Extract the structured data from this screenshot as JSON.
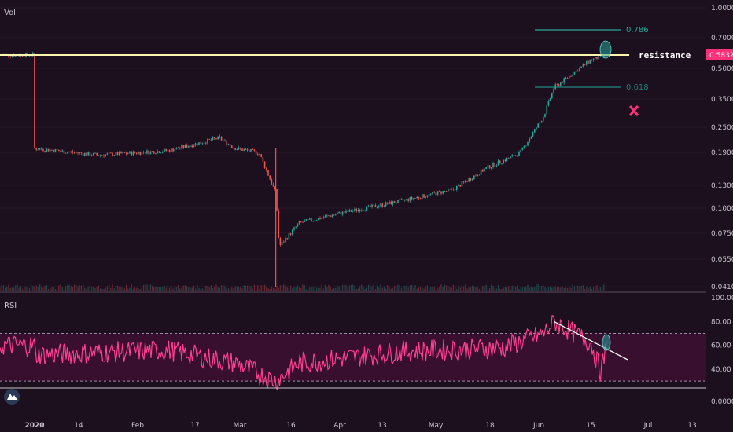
{
  "panes": {
    "main_label": "Vol",
    "rsi_label": "RSI"
  },
  "annotations": {
    "fib_786": "0.786",
    "fib_618": "0.618",
    "resistance": "resistance",
    "current_price": "0.5832",
    "bottom_right_value": "0.0000"
  },
  "colors": {
    "background": "#1c0f1e",
    "up": "#26a69a",
    "down": "#ef5350",
    "rsi_line": "#ff3f8f",
    "rsi_band": "#3a1030",
    "fib": "#26a69a",
    "resistance_line": "#fff4b0",
    "price_tag": "#ff2f78"
  },
  "chart_data": [
    {
      "type": "candlestick",
      "title": "",
      "scale": "log",
      "y_ticks": [
        "1.0000",
        "0.7000",
        "0.5000",
        "0.3500",
        "0.2500",
        "0.1900",
        "0.1300",
        "0.1000",
        "0.0750",
        "0.0550",
        "0.0410"
      ],
      "x_ticks": [
        "2020",
        "14",
        "Feb",
        "17",
        "Mar",
        "16",
        "Apr",
        "13",
        "May",
        "18",
        "Jun",
        "15",
        "Jul",
        "13"
      ],
      "close_path": [
        {
          "date": "2020-01-01",
          "value": 0.2
        },
        {
          "date": "2020-01-20",
          "value": 0.185
        },
        {
          "date": "2020-02-10",
          "value": 0.195
        },
        {
          "date": "2020-02-25",
          "value": 0.225
        },
        {
          "date": "2020-03-01",
          "value": 0.2
        },
        {
          "date": "2020-03-08",
          "value": 0.19
        },
        {
          "date": "2020-03-13",
          "value": 0.12
        },
        {
          "date": "2020-03-14",
          "value": 0.065
        },
        {
          "date": "2020-03-20",
          "value": 0.085
        },
        {
          "date": "2020-04-01",
          "value": 0.095
        },
        {
          "date": "2020-04-20",
          "value": 0.11
        },
        {
          "date": "2020-05-05",
          "value": 0.125
        },
        {
          "date": "2020-05-15",
          "value": 0.16
        },
        {
          "date": "2020-05-25",
          "value": 0.19
        },
        {
          "date": "2020-06-01",
          "value": 0.29
        },
        {
          "date": "2020-06-04",
          "value": 0.4
        },
        {
          "date": "2020-06-15",
          "value": 0.55
        },
        {
          "date": "2020-06-20",
          "value": 0.5832
        }
      ],
      "levels": [
        {
          "label": "0.786",
          "value": 0.78
        },
        {
          "label": "0.618",
          "value": 0.4
        },
        {
          "label": "resistance",
          "value": 0.5832
        }
      ]
    },
    {
      "type": "line",
      "title": "RSI",
      "y_ticks": [
        "100.00",
        "80.00",
        "60.00",
        "40.00"
      ],
      "band": [
        30,
        70
      ],
      "values": [
        {
          "date": "2020-01-01",
          "value": 52
        },
        {
          "date": "2020-02-10",
          "value": 56
        },
        {
          "date": "2020-03-01",
          "value": 45
        },
        {
          "date": "2020-03-13",
          "value": 30
        },
        {
          "date": "2020-03-20",
          "value": 45
        },
        {
          "date": "2020-04-20",
          "value": 55
        },
        {
          "date": "2020-05-20",
          "value": 58
        },
        {
          "date": "2020-06-01",
          "value": 70
        },
        {
          "date": "2020-06-04",
          "value": 80
        },
        {
          "date": "2020-06-15",
          "value": 62
        },
        {
          "date": "2020-06-18",
          "value": 38
        },
        {
          "date": "2020-06-20",
          "value": 60
        }
      ],
      "trendline": [
        {
          "date": "2020-06-04",
          "value": 80
        },
        {
          "date": "2020-06-26",
          "value": 48
        }
      ]
    }
  ]
}
